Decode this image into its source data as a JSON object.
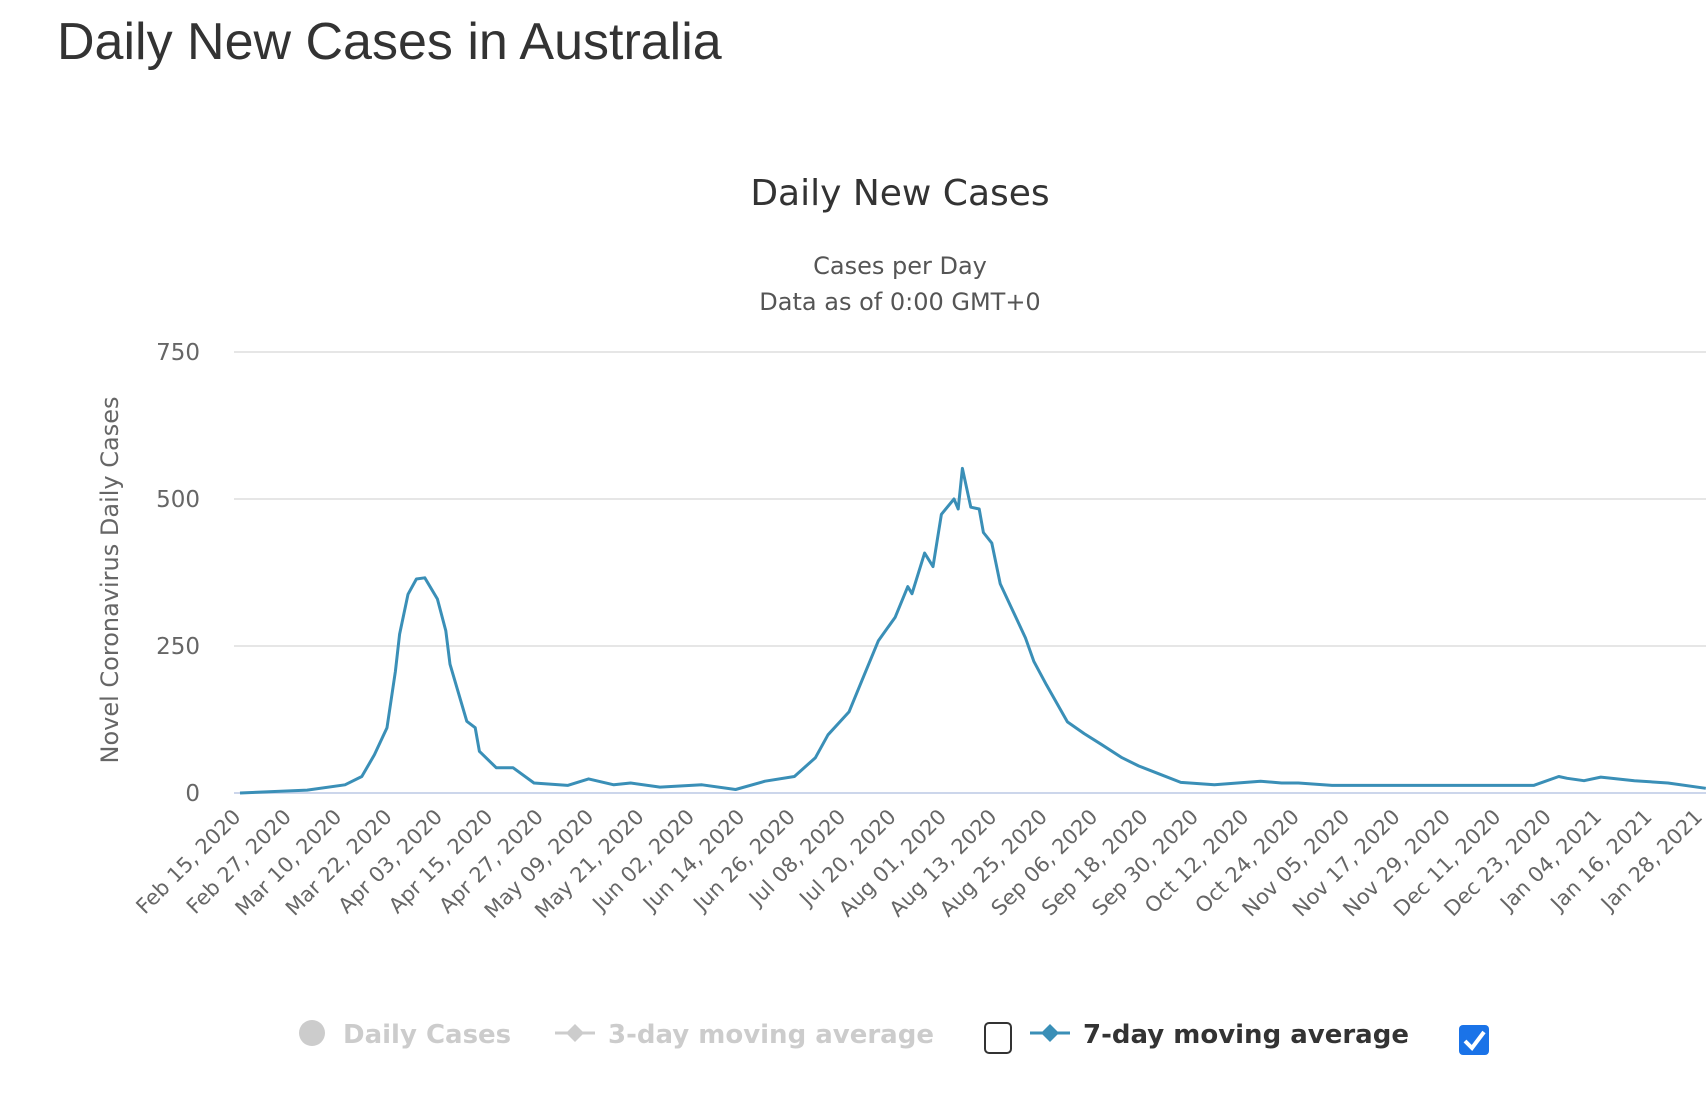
{
  "page": {
    "title": "Daily New Cases in Australia"
  },
  "chart_data": {
    "type": "line",
    "title": "Daily New Cases",
    "subtitle": [
      "Cases per Day",
      "Data as of 0:00 GMT+0"
    ],
    "ylabel": "Novel Coronavirus Daily Cases",
    "xlabel": "",
    "ylim": [
      0,
      750
    ],
    "yticks": [
      "0",
      "250",
      "500",
      "750"
    ],
    "ytick_values": [
      0,
      250,
      500,
      750
    ],
    "grid": true,
    "legend_position": "bottom",
    "line_color": "#3a8fb7",
    "xticks": [
      "Feb 15, 2020",
      "Feb 27, 2020",
      "Mar 10, 2020",
      "Mar 22, 2020",
      "Apr 03, 2020",
      "Apr 15, 2020",
      "Apr 27, 2020",
      "May 09, 2020",
      "May 21, 2020",
      "Jun 02, 2020",
      "Jun 14, 2020",
      "Jun 26, 2020",
      "Jul 08, 2020",
      "Jul 20, 2020",
      "Aug 01, 2020",
      "Aug 13, 2020",
      "Aug 25, 2020",
      "Sep 06, 2020",
      "Sep 18, 2020",
      "Sep 30, 2020",
      "Oct 12, 2020",
      "Oct 24, 2020",
      "Nov 05, 2020",
      "Nov 17, 2020",
      "Nov 29, 2020",
      "Dec 11, 2020",
      "Dec 23, 2020",
      "Jan 04, 2021",
      "Jan 16, 2021",
      "Jan 28, 2021"
    ],
    "legend": [
      {
        "name": "Daily Cases",
        "visible": false,
        "color": "#cccccc",
        "marker": "circle"
      },
      {
        "name": "3-day moving average",
        "visible": false,
        "color": "#cccccc",
        "marker": "diamond",
        "checkbox": false
      },
      {
        "name": "7-day moving average",
        "visible": true,
        "color": "#3a8fb7",
        "marker": "diamond",
        "checkbox": true
      }
    ],
    "series": [
      {
        "name": "7-day moving average",
        "x": [
          "2020-02-15",
          "2020-03-02",
          "2020-03-11",
          "2020-03-15",
          "2020-03-18",
          "2020-03-21",
          "2020-03-23",
          "2020-03-24",
          "2020-03-26",
          "2020-03-28",
          "2020-03-30",
          "2020-04-02",
          "2020-04-04",
          "2020-04-05",
          "2020-04-09",
          "2020-04-11",
          "2020-04-12",
          "2020-04-16",
          "2020-04-20",
          "2020-04-25",
          "2020-05-03",
          "2020-05-08",
          "2020-05-14",
          "2020-05-18",
          "2020-05-25",
          "2020-06-04",
          "2020-06-12",
          "2020-06-19",
          "2020-06-26",
          "2020-07-01",
          "2020-07-04",
          "2020-07-09",
          "2020-07-12",
          "2020-07-16",
          "2020-07-20",
          "2020-07-23",
          "2020-07-24",
          "2020-07-27",
          "2020-07-29",
          "2020-07-31",
          "2020-08-03",
          "2020-08-04",
          "2020-08-05",
          "2020-08-07",
          "2020-08-09",
          "2020-08-10",
          "2020-08-12",
          "2020-08-14",
          "2020-08-17",
          "2020-08-20",
          "2020-08-22",
          "2020-08-25",
          "2020-08-30",
          "2020-09-03",
          "2020-09-07",
          "2020-09-12",
          "2020-09-16",
          "2020-09-21",
          "2020-09-26",
          "2020-10-04",
          "2020-10-15",
          "2020-10-20",
          "2020-10-24",
          "2020-11-01",
          "2020-11-17",
          "2020-12-19",
          "2020-12-25",
          "2020-12-27",
          "2020-12-31",
          "2021-01-04",
          "2021-01-12",
          "2021-01-20",
          "2021-01-29"
        ],
        "y": [
          0,
          5,
          14,
          28,
          65,
          111,
          207,
          270,
          338,
          364,
          366,
          330,
          276,
          219,
          122,
          111,
          71,
          43,
          43,
          17,
          13,
          24,
          14,
          17,
          10,
          14,
          6,
          20,
          28,
          60,
          99,
          138,
          190,
          259,
          299,
          351,
          339,
          408,
          385,
          474,
          500,
          483,
          552,
          486,
          483,
          443,
          425,
          356,
          310,
          264,
          224,
          184,
          121,
          101,
          83,
          60,
          46,
          32,
          18,
          14,
          20,
          17,
          17,
          13,
          13,
          13,
          28,
          25,
          21,
          27,
          21,
          17,
          8
        ]
      }
    ]
  }
}
